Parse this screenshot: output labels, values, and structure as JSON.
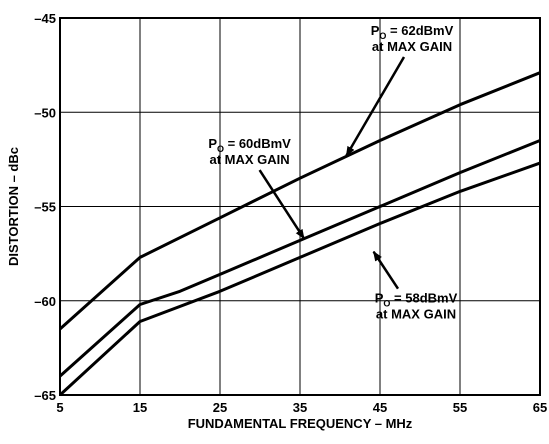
{
  "chart_data": {
    "type": "line",
    "xlabel": "FUNDAMENTAL FREQUENCY – MHz",
    "ylabel": "DISTORTION – dBc",
    "xlim": [
      5,
      65
    ],
    "ylim": [
      -65,
      -45
    ],
    "x_ticks": [
      5,
      15,
      25,
      35,
      45,
      55,
      65
    ],
    "y_ticks": [
      -65,
      -60,
      -55,
      -50,
      -45
    ],
    "x_tick_labels": [
      "5",
      "15",
      "25",
      "35",
      "45",
      "55",
      "65"
    ],
    "y_tick_labels": [
      "–65",
      "–60",
      "–55",
      "–50",
      "–45"
    ],
    "grid": true,
    "series": [
      {
        "name": "PO = 62dBmV at MAX GAIN",
        "x": [
          5,
          15,
          25,
          35,
          45,
          55,
          65
        ],
        "values": [
          -61.5,
          -57.7,
          -55.6,
          -53.5,
          -51.5,
          -49.6,
          -47.9
        ]
      },
      {
        "name": "PO = 60dBmV at MAX GAIN",
        "x": [
          5,
          15,
          20,
          25,
          35,
          45,
          55,
          65
        ],
        "values": [
          -64.0,
          -60.2,
          -59.5,
          -58.6,
          -56.8,
          -55.0,
          -53.2,
          -51.5
        ]
      },
      {
        "name": "PO = 58dBmV at MAX GAIN",
        "x": [
          5,
          15,
          25,
          35,
          45,
          55,
          65
        ],
        "values": [
          -65.0,
          -61.1,
          -59.5,
          -57.7,
          -55.9,
          -54.2,
          -52.7
        ]
      }
    ],
    "annotations": [
      {
        "main": "P",
        "sub": "O",
        "rest": " = 62dBmV",
        "line2": "at MAX GAIN",
        "x": 49,
        "y": -45.9,
        "target_x": 40.8,
        "target_y": -52.3
      },
      {
        "main": "P",
        "sub": "O",
        "rest": " = 60dBmV",
        "line2": "at MAX GAIN",
        "x": 28.7,
        "y": -51.9,
        "target_x": 35.5,
        "target_y": -56.7
      },
      {
        "main": "P",
        "sub": "O",
        "rest": " = 58dBmV",
        "line2": "at MAX GAIN",
        "x": 49.5,
        "y": -60.1,
        "target_x": 44.2,
        "target_y": -57.4
      }
    ]
  }
}
